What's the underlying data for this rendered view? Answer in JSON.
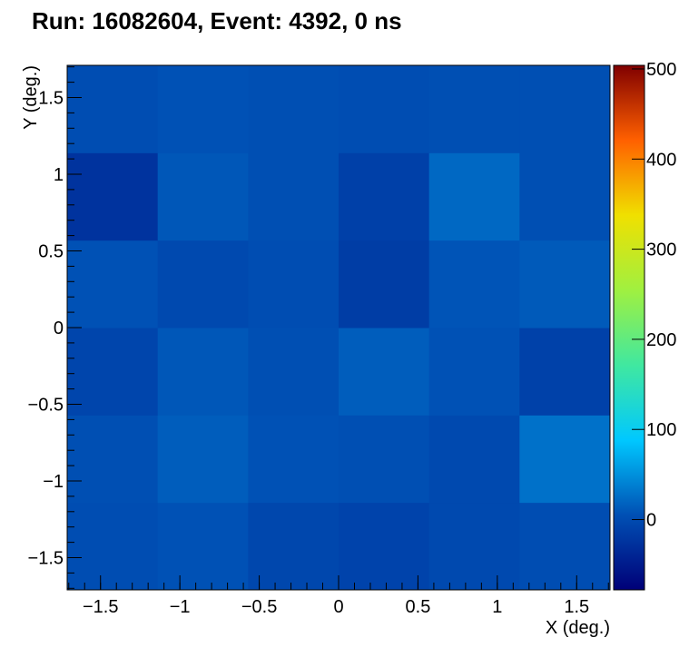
{
  "chart_data": {
    "type": "heatmap",
    "title": "Run: 16082604, Event: 4392, 0 ns",
    "x_label": "X (deg.)",
    "y_label": "Y (deg.)",
    "xbins": [
      -1.71,
      -1.14,
      -0.57,
      0,
      0.57,
      1.14,
      1.71
    ],
    "ybins": [
      -1.71,
      -1.14,
      -0.57,
      0,
      0.57,
      1.14,
      1.71
    ],
    "z": [
      [
        2,
        6,
        -4,
        -8,
        -2,
        2
      ],
      [
        4,
        14,
        6,
        4,
        -2,
        28
      ],
      [
        -6,
        10,
        4,
        14,
        6,
        -10
      ],
      [
        6,
        -2,
        2,
        -15,
        8,
        12
      ],
      [
        -25,
        10,
        4,
        -12,
        22,
        4
      ],
      [
        2,
        6,
        4,
        2,
        4,
        4
      ]
    ],
    "xlim": [
      -1.71,
      1.71
    ],
    "ylim": [
      -1.71,
      1.71
    ],
    "xticks": [
      {
        "value": -1.5,
        "label": "−1.5"
      },
      {
        "value": -1,
        "label": "−1"
      },
      {
        "value": -0.5,
        "label": "−0.5"
      },
      0,
      0.5,
      1,
      1.5
    ],
    "yticks": [
      {
        "value": -1.5,
        "label": "−1.5"
      },
      {
        "value": -1,
        "label": "−1"
      },
      {
        "value": -0.5,
        "label": "−0.5"
      },
      0,
      0.5,
      1,
      1.5
    ],
    "zlim": [
      -78,
      504
    ],
    "zticks": [
      0,
      100,
      200,
      300,
      400,
      500
    ],
    "colorscale": [
      "#000078",
      "#0050b4",
      "#00c8ff",
      "#40e8a0",
      "#a0f040",
      "#f0e000",
      "#ff6000",
      "#800000"
    ]
  }
}
